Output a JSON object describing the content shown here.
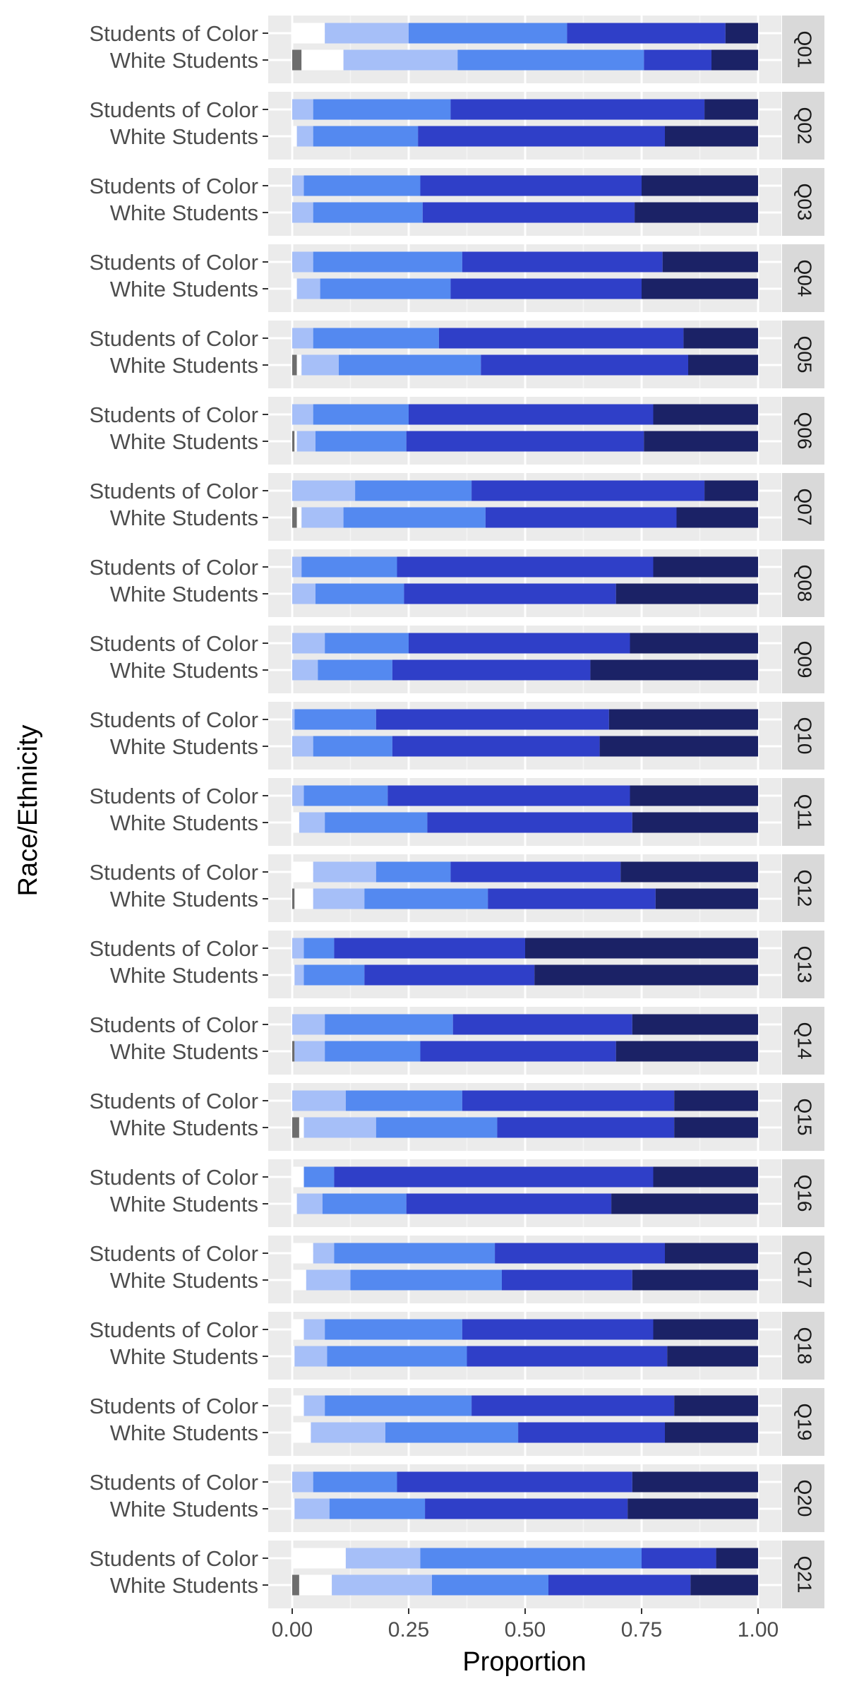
{
  "chart_data": {
    "type": "bar",
    "orientation": "horizontal",
    "stacked": true,
    "faceted": true,
    "xlabel": "Proportion",
    "ylabel": "Race/Ethnicity",
    "xlim": [
      0,
      1
    ],
    "x_ticks": [
      "0.00",
      "0.25",
      "0.50",
      "0.75",
      "1.00"
    ],
    "grid": true,
    "legend": "none",
    "groups": [
      "Students of Color",
      "White Students"
    ],
    "segment_colors": [
      "#6d6d6d",
      "#ffffff",
      "#a6bff8",
      "#5489f0",
      "#2f3fc8",
      "#1b2266"
    ],
    "panels": [
      {
        "label": "Q01",
        "rows": [
          {
            "group": "Students of Color",
            "values": [
              0.0,
              0.07,
              0.18,
              0.34,
              0.34,
              0.07
            ]
          },
          {
            "group": "White Students",
            "values": [
              0.02,
              0.09,
              0.245,
              0.4,
              0.145,
              0.1
            ]
          }
        ]
      },
      {
        "label": "Q02",
        "rows": [
          {
            "group": "Students of Color",
            "values": [
              0.0,
              0.0,
              0.045,
              0.295,
              0.545,
              0.115
            ]
          },
          {
            "group": "White Students",
            "values": [
              0.0,
              0.01,
              0.035,
              0.225,
              0.53,
              0.2
            ]
          }
        ]
      },
      {
        "label": "Q03",
        "rows": [
          {
            "group": "Students of Color",
            "values": [
              0.0,
              0.0,
              0.025,
              0.25,
              0.475,
              0.25
            ]
          },
          {
            "group": "White Students",
            "values": [
              0.0,
              0.0,
              0.045,
              0.235,
              0.455,
              0.265
            ]
          }
        ]
      },
      {
        "label": "Q04",
        "rows": [
          {
            "group": "Students of Color",
            "values": [
              0.0,
              0.0,
              0.045,
              0.32,
              0.43,
              0.205
            ]
          },
          {
            "group": "White Students",
            "values": [
              0.0,
              0.01,
              0.05,
              0.28,
              0.41,
              0.25
            ]
          }
        ]
      },
      {
        "label": "Q05",
        "rows": [
          {
            "group": "Students of Color",
            "values": [
              0.0,
              0.0,
              0.045,
              0.27,
              0.525,
              0.16
            ]
          },
          {
            "group": "White Students",
            "values": [
              0.01,
              0.01,
              0.08,
              0.305,
              0.445,
              0.15
            ]
          }
        ]
      },
      {
        "label": "Q06",
        "rows": [
          {
            "group": "Students of Color",
            "values": [
              0.0,
              0.0,
              0.045,
              0.205,
              0.525,
              0.225
            ]
          },
          {
            "group": "White Students",
            "values": [
              0.005,
              0.005,
              0.04,
              0.195,
              0.51,
              0.245
            ]
          }
        ]
      },
      {
        "label": "Q07",
        "rows": [
          {
            "group": "Students of Color",
            "values": [
              0.0,
              0.0,
              0.135,
              0.25,
              0.5,
              0.115
            ]
          },
          {
            "group": "White Students",
            "values": [
              0.01,
              0.01,
              0.09,
              0.305,
              0.41,
              0.175
            ]
          }
        ]
      },
      {
        "label": "Q08",
        "rows": [
          {
            "group": "Students of Color",
            "values": [
              0.0,
              0.0,
              0.02,
              0.205,
              0.55,
              0.225
            ]
          },
          {
            "group": "White Students",
            "values": [
              0.0,
              0.0,
              0.05,
              0.19,
              0.455,
              0.305
            ]
          }
        ]
      },
      {
        "label": "Q09",
        "rows": [
          {
            "group": "Students of Color",
            "values": [
              0.0,
              0.0,
              0.07,
              0.18,
              0.475,
              0.275
            ]
          },
          {
            "group": "White Students",
            "values": [
              0.0,
              0.0,
              0.055,
              0.16,
              0.425,
              0.36
            ]
          }
        ]
      },
      {
        "label": "Q10",
        "rows": [
          {
            "group": "Students of Color",
            "values": [
              0.0,
              0.0,
              0.005,
              0.175,
              0.5,
              0.32
            ]
          },
          {
            "group": "White Students",
            "values": [
              0.0,
              0.0,
              0.045,
              0.17,
              0.445,
              0.34
            ]
          }
        ]
      },
      {
        "label": "Q11",
        "rows": [
          {
            "group": "Students of Color",
            "values": [
              0.0,
              0.0,
              0.025,
              0.18,
              0.52,
              0.275
            ]
          },
          {
            "group": "White Students",
            "values": [
              0.0,
              0.015,
              0.055,
              0.22,
              0.44,
              0.27
            ]
          }
        ]
      },
      {
        "label": "Q12",
        "rows": [
          {
            "group": "Students of Color",
            "values": [
              0.0,
              0.045,
              0.135,
              0.16,
              0.365,
              0.295
            ]
          },
          {
            "group": "White Students",
            "values": [
              0.005,
              0.04,
              0.11,
              0.265,
              0.36,
              0.22
            ]
          }
        ]
      },
      {
        "label": "Q13",
        "rows": [
          {
            "group": "Students of Color",
            "values": [
              0.0,
              0.0,
              0.025,
              0.065,
              0.41,
              0.5
            ]
          },
          {
            "group": "White Students",
            "values": [
              0.0,
              0.005,
              0.02,
              0.13,
              0.365,
              0.48
            ]
          }
        ]
      },
      {
        "label": "Q14",
        "rows": [
          {
            "group": "Students of Color",
            "values": [
              0.0,
              0.0,
              0.07,
              0.275,
              0.385,
              0.27
            ]
          },
          {
            "group": "White Students",
            "values": [
              0.005,
              0.0,
              0.065,
              0.205,
              0.42,
              0.305
            ]
          }
        ]
      },
      {
        "label": "Q15",
        "rows": [
          {
            "group": "Students of Color",
            "values": [
              0.0,
              0.0,
              0.115,
              0.25,
              0.455,
              0.18
            ]
          },
          {
            "group": "White Students",
            "values": [
              0.015,
              0.01,
              0.155,
              0.26,
              0.38,
              0.18
            ]
          }
        ]
      },
      {
        "label": "Q16",
        "rows": [
          {
            "group": "Students of Color",
            "values": [
              0.0,
              0.025,
              0.0,
              0.065,
              0.685,
              0.225
            ]
          },
          {
            "group": "White Students",
            "values": [
              0.0,
              0.01,
              0.055,
              0.18,
              0.44,
              0.315
            ]
          }
        ]
      },
      {
        "label": "Q17",
        "rows": [
          {
            "group": "Students of Color",
            "values": [
              0.0,
              0.045,
              0.045,
              0.345,
              0.365,
              0.2
            ]
          },
          {
            "group": "White Students",
            "values": [
              0.0,
              0.03,
              0.095,
              0.325,
              0.28,
              0.27
            ]
          }
        ]
      },
      {
        "label": "Q18",
        "rows": [
          {
            "group": "Students of Color",
            "values": [
              0.0,
              0.025,
              0.045,
              0.295,
              0.41,
              0.225
            ]
          },
          {
            "group": "White Students",
            "values": [
              0.0,
              0.005,
              0.07,
              0.3,
              0.43,
              0.195
            ]
          }
        ]
      },
      {
        "label": "Q19",
        "rows": [
          {
            "group": "Students of Color",
            "values": [
              0.0,
              0.025,
              0.045,
              0.315,
              0.435,
              0.18
            ]
          },
          {
            "group": "White Students",
            "values": [
              0.0,
              0.04,
              0.16,
              0.285,
              0.315,
              0.2
            ]
          }
        ]
      },
      {
        "label": "Q20",
        "rows": [
          {
            "group": "Students of Color",
            "values": [
              0.0,
              0.0,
              0.045,
              0.18,
              0.505,
              0.27
            ]
          },
          {
            "group": "White Students",
            "values": [
              0.0,
              0.005,
              0.075,
              0.205,
              0.435,
              0.28
            ]
          }
        ]
      },
      {
        "label": "Q21",
        "rows": [
          {
            "group": "Students of Color",
            "values": [
              0.0,
              0.115,
              0.16,
              0.475,
              0.16,
              0.09
            ]
          },
          {
            "group": "White Students",
            "values": [
              0.015,
              0.07,
              0.215,
              0.25,
              0.305,
              0.145
            ]
          }
        ]
      }
    ]
  }
}
